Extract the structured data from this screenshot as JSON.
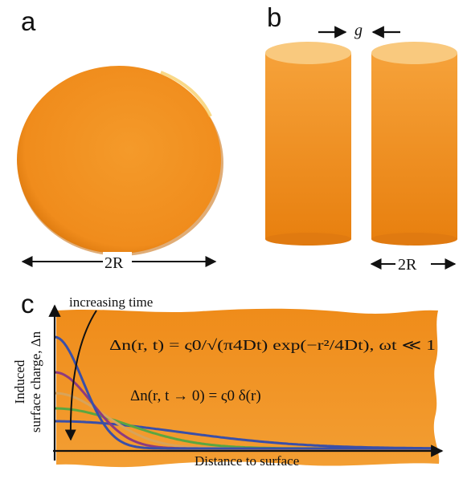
{
  "panels": {
    "a": {
      "letter": "a",
      "dimension_label": "2R"
    },
    "b": {
      "letter": "b",
      "gap_label": "g",
      "dimension_label": "2R"
    },
    "c": {
      "letter": "c",
      "annotation": "increasing time",
      "y_label_line1": "Induced",
      "y_label_line2": "surface charge, Δn",
      "x_label": "Distance to surface",
      "equation_1": "Δn(r, t) = ς0/√(π4Dt) exp(−r²/4Dt), ωt ≪ 1",
      "equation_2": "Δn(r, t → 0) = ς0 δ(r)",
      "curve_colors": [
        "#3a4fa8",
        "#8e3b7e",
        "#d8a35a",
        "#5aa641",
        "#3a4fa8"
      ]
    }
  },
  "colors": {
    "orange": "#f29424",
    "orange_dark": "#e07a10",
    "orange_light": "#f7c06a"
  }
}
